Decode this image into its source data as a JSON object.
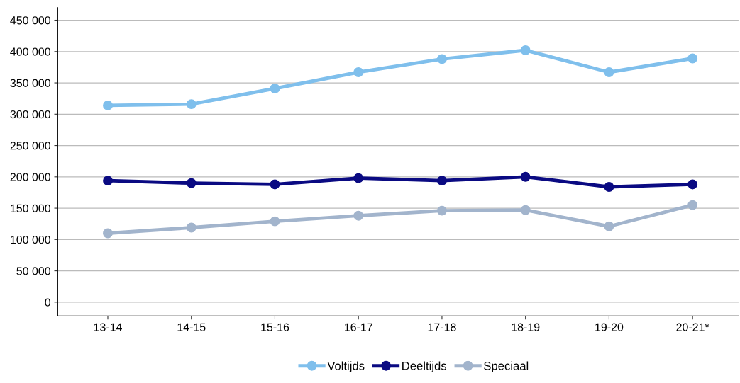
{
  "chart_data": {
    "type": "line",
    "categories": [
      "13-14",
      "14-15",
      "15-16",
      "16-17",
      "17-18",
      "18-19",
      "19-20",
      "20-21*"
    ],
    "series": [
      {
        "name": "Voltijds",
        "color": "#7fbfec",
        "values": [
          314000,
          316000,
          341000,
          367000,
          388000,
          402000,
          367000,
          389000
        ]
      },
      {
        "name": "Deeltijds",
        "color": "#0a0a82",
        "values": [
          194000,
          190000,
          188000,
          198000,
          194000,
          200000,
          184000,
          188000
        ]
      },
      {
        "name": "Speciaal",
        "color": "#a2b4cc",
        "values": [
          110000,
          119000,
          129000,
          138000,
          146000,
          147000,
          121000,
          155000
        ]
      }
    ],
    "ylim": [
      -22000,
      470000
    ],
    "yticks": [
      0,
      {
        "value": 50000,
        "label": "50 000"
      },
      {
        "value": 100000,
        "label": "100 000"
      },
      {
        "value": 150000,
        "label": "150 000"
      },
      {
        "value": 200000,
        "label": "200 000"
      },
      {
        "value": 250000,
        "label": "250 000"
      },
      {
        "value": 300000,
        "label": "300 000"
      },
      {
        "value": 350000,
        "label": "350 000"
      },
      {
        "value": 400000,
        "label": "400 000"
      },
      {
        "value": 450000,
        "label": "450 000"
      }
    ],
    "grid": "y",
    "legend": "bottom",
    "marker": "circle",
    "line_style": "solid"
  }
}
